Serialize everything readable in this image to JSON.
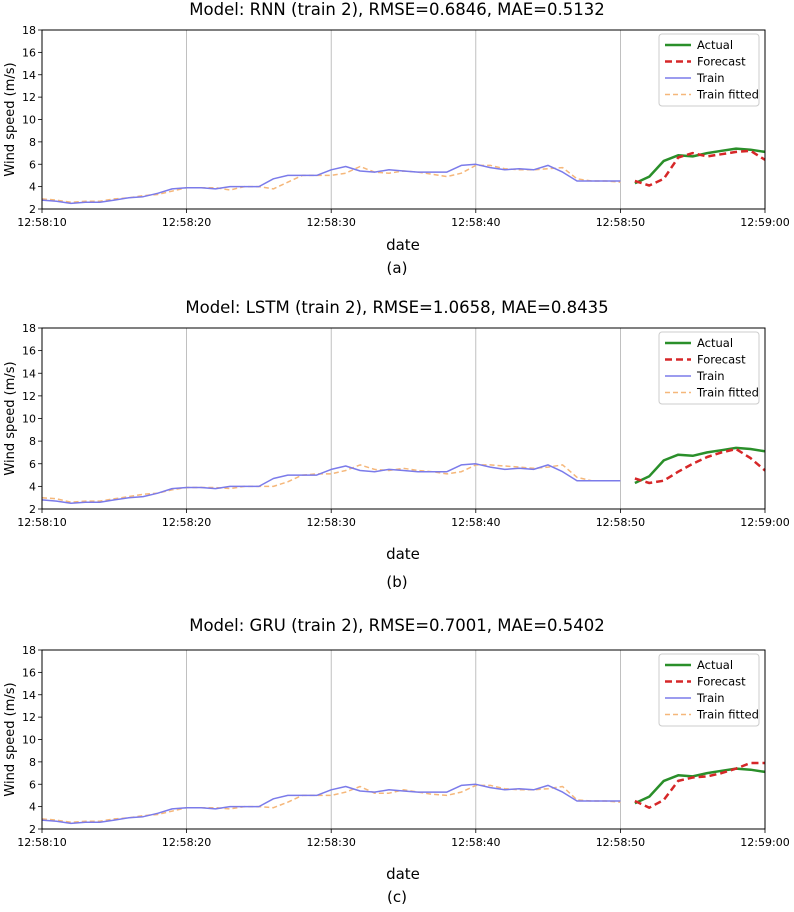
{
  "charts": [
    {
      "title": "Model: RNN (train 2), RMSE=0.6846, MAE=0.5132",
      "sublabel": "(a)"
    },
    {
      "title": "Model: LSTM (train 2), RMSE=1.0658, MAE=0.8435",
      "sublabel": "(b)"
    },
    {
      "title": "Model: GRU (train 2), RMSE=0.7001, MAE=0.5402",
      "sublabel": "(c)"
    }
  ],
  "chart_data": [
    {
      "type": "line",
      "title": "Model: RNN (train 2), RMSE=0.6846, MAE=0.5132",
      "xlabel": "date",
      "ylabel": "Wind speed (m/s)",
      "ylim": [
        2,
        18
      ],
      "yticks": [
        2,
        4,
        6,
        8,
        10,
        12,
        14,
        16,
        18
      ],
      "xlim": [
        "12:58:10",
        "12:59:00"
      ],
      "xticks": [
        "12:58:10",
        "12:58:20",
        "12:58:30",
        "12:58:40",
        "12:58:50",
        "12:59:00"
      ],
      "grid": true,
      "legend": "top-right",
      "series": [
        {
          "name": "Actual",
          "color": "#2a8f2a",
          "style": "solid",
          "x": [
            "12:58:51",
            "12:58:52",
            "12:58:53",
            "12:58:54",
            "12:58:55",
            "12:58:56",
            "12:58:57",
            "12:58:58",
            "12:58:59",
            "12:59:00"
          ],
          "y": [
            4.3,
            4.9,
            6.3,
            6.8,
            6.7,
            7.0,
            7.2,
            7.4,
            7.3,
            7.1
          ]
        },
        {
          "name": "Forecast",
          "color": "#d62728",
          "style": "dashed",
          "x": [
            "12:58:51",
            "12:58:52",
            "12:58:53",
            "12:58:54",
            "12:58:55",
            "12:58:56",
            "12:58:57",
            "12:58:58",
            "12:58:59",
            "12:59:00"
          ],
          "y": [
            4.5,
            4.1,
            4.7,
            6.6,
            7.0,
            6.7,
            6.9,
            7.1,
            7.2,
            6.4
          ]
        },
        {
          "name": "Train",
          "color": "#7b7bea",
          "style": "solid",
          "x": [
            "12:58:10",
            "12:58:11",
            "12:58:12",
            "12:58:13",
            "12:58:14",
            "12:58:15",
            "12:58:16",
            "12:58:17",
            "12:58:18",
            "12:58:19",
            "12:58:20",
            "12:58:21",
            "12:58:22",
            "12:58:23",
            "12:58:24",
            "12:58:25",
            "12:58:26",
            "12:58:27",
            "12:58:28",
            "12:58:29",
            "12:58:30",
            "12:58:31",
            "12:58:32",
            "12:58:33",
            "12:58:34",
            "12:58:35",
            "12:58:36",
            "12:58:37",
            "12:58:38",
            "12:58:39",
            "12:58:40",
            "12:58:41",
            "12:58:42",
            "12:58:43",
            "12:58:44",
            "12:58:45",
            "12:58:46",
            "12:58:47",
            "12:58:48",
            "12:58:49",
            "12:58:50"
          ],
          "y": [
            2.8,
            2.7,
            2.5,
            2.6,
            2.6,
            2.8,
            3.0,
            3.1,
            3.4,
            3.8,
            3.9,
            3.9,
            3.8,
            4.0,
            4.0,
            4.0,
            4.7,
            5.0,
            5.0,
            5.0,
            5.5,
            5.8,
            5.4,
            5.3,
            5.5,
            5.4,
            5.3,
            5.3,
            5.3,
            5.9,
            6.0,
            5.7,
            5.5,
            5.6,
            5.5,
            5.9,
            5.3,
            4.5,
            4.5,
            4.5,
            4.5
          ]
        },
        {
          "name": "Train fitted",
          "color": "#f5b77a",
          "style": "dashed",
          "x": [
            "12:58:10",
            "12:58:11",
            "12:58:12",
            "12:58:13",
            "12:58:14",
            "12:58:15",
            "12:58:16",
            "12:58:17",
            "12:58:18",
            "12:58:19",
            "12:58:20",
            "12:58:21",
            "12:58:22",
            "12:58:23",
            "12:58:24",
            "12:58:25",
            "12:58:26",
            "12:58:27",
            "12:58:28",
            "12:58:29",
            "12:58:30",
            "12:58:31",
            "12:58:32",
            "12:58:33",
            "12:58:34",
            "12:58:35",
            "12:58:36",
            "12:58:37",
            "12:58:38",
            "12:58:39",
            "12:58:40",
            "12:58:41",
            "12:58:42",
            "12:58:43",
            "12:58:44",
            "12:58:45",
            "12:58:46",
            "12:58:47",
            "12:58:48",
            "12:58:49",
            "12:58:50"
          ],
          "y": [
            2.9,
            2.8,
            2.6,
            2.7,
            2.7,
            2.9,
            3.0,
            3.2,
            3.3,
            3.6,
            3.9,
            3.9,
            3.9,
            3.7,
            4.0,
            4.0,
            3.8,
            4.4,
            5.0,
            5.0,
            5.0,
            5.2,
            5.8,
            5.3,
            5.2,
            5.4,
            5.3,
            5.1,
            4.9,
            5.2,
            5.9,
            5.9,
            5.6,
            5.5,
            5.5,
            5.6,
            5.7,
            4.7,
            4.5,
            4.5,
            4.4
          ]
        }
      ]
    },
    {
      "type": "line",
      "title": "Model: LSTM (train 2), RMSE=1.0658, MAE=0.8435",
      "xlabel": "date",
      "ylabel": "Wind speed (m/s)",
      "ylim": [
        2,
        18
      ],
      "yticks": [
        2,
        4,
        6,
        8,
        10,
        12,
        14,
        16,
        18
      ],
      "xlim": [
        "12:58:10",
        "12:59:00"
      ],
      "xticks": [
        "12:58:10",
        "12:58:20",
        "12:58:30",
        "12:58:40",
        "12:58:50",
        "12:59:00"
      ],
      "grid": true,
      "legend": "top-right",
      "series": [
        {
          "name": "Actual",
          "color": "#2a8f2a",
          "style": "solid",
          "x": [
            "12:58:51",
            "12:58:52",
            "12:58:53",
            "12:58:54",
            "12:58:55",
            "12:58:56",
            "12:58:57",
            "12:58:58",
            "12:58:59",
            "12:59:00"
          ],
          "y": [
            4.3,
            4.9,
            6.3,
            6.8,
            6.7,
            7.0,
            7.2,
            7.4,
            7.3,
            7.1
          ]
        },
        {
          "name": "Forecast",
          "color": "#d62728",
          "style": "dashed",
          "x": [
            "12:58:51",
            "12:58:52",
            "12:58:53",
            "12:58:54",
            "12:58:55",
            "12:58:56",
            "12:58:57",
            "12:58:58",
            "12:58:59",
            "12:59:00"
          ],
          "y": [
            4.7,
            4.3,
            4.5,
            5.3,
            6.0,
            6.6,
            7.0,
            7.3,
            6.5,
            5.4
          ]
        },
        {
          "name": "Train",
          "color": "#7b7bea",
          "style": "solid",
          "x": [
            "12:58:10",
            "12:58:11",
            "12:58:12",
            "12:58:13",
            "12:58:14",
            "12:58:15",
            "12:58:16",
            "12:58:17",
            "12:58:18",
            "12:58:19",
            "12:58:20",
            "12:58:21",
            "12:58:22",
            "12:58:23",
            "12:58:24",
            "12:58:25",
            "12:58:26",
            "12:58:27",
            "12:58:28",
            "12:58:29",
            "12:58:30",
            "12:58:31",
            "12:58:32",
            "12:58:33",
            "12:58:34",
            "12:58:35",
            "12:58:36",
            "12:58:37",
            "12:58:38",
            "12:58:39",
            "12:58:40",
            "12:58:41",
            "12:58:42",
            "12:58:43",
            "12:58:44",
            "12:58:45",
            "12:58:46",
            "12:58:47",
            "12:58:48",
            "12:58:49",
            "12:58:50"
          ],
          "y": [
            2.8,
            2.7,
            2.5,
            2.6,
            2.6,
            2.8,
            3.0,
            3.1,
            3.4,
            3.8,
            3.9,
            3.9,
            3.8,
            4.0,
            4.0,
            4.0,
            4.7,
            5.0,
            5.0,
            5.0,
            5.5,
            5.8,
            5.4,
            5.3,
            5.5,
            5.4,
            5.3,
            5.3,
            5.3,
            5.9,
            6.0,
            5.7,
            5.5,
            5.6,
            5.5,
            5.9,
            5.3,
            4.5,
            4.5,
            4.5,
            4.5
          ]
        },
        {
          "name": "Train fitted",
          "color": "#f5b77a",
          "style": "dashed",
          "x": [
            "12:58:10",
            "12:58:11",
            "12:58:12",
            "12:58:13",
            "12:58:14",
            "12:58:15",
            "12:58:16",
            "12:58:17",
            "12:58:18",
            "12:58:19",
            "12:58:20",
            "12:58:21",
            "12:58:22",
            "12:58:23",
            "12:58:24",
            "12:58:25",
            "12:58:26",
            "12:58:27",
            "12:58:28",
            "12:58:29",
            "12:58:30",
            "12:58:31",
            "12:58:32",
            "12:58:33",
            "12:58:34",
            "12:58:35",
            "12:58:36",
            "12:58:37",
            "12:58:38",
            "12:58:39",
            "12:58:40",
            "12:58:41",
            "12:58:42",
            "12:58:43",
            "12:58:44",
            "12:58:45",
            "12:58:46",
            "12:58:47",
            "12:58:48",
            "12:58:49",
            "12:58:50"
          ],
          "y": [
            3.0,
            2.9,
            2.6,
            2.7,
            2.7,
            2.9,
            3.1,
            3.3,
            3.4,
            3.7,
            3.9,
            3.9,
            3.9,
            3.8,
            4.0,
            4.0,
            4.0,
            4.4,
            5.0,
            5.1,
            5.1,
            5.4,
            5.9,
            5.5,
            5.4,
            5.6,
            5.4,
            5.3,
            5.1,
            5.3,
            5.9,
            5.9,
            5.8,
            5.7,
            5.6,
            5.7,
            5.9,
            4.8,
            4.5,
            4.5,
            4.5
          ]
        }
      ]
    },
    {
      "type": "line",
      "title": "Model: GRU (train 2), RMSE=0.7001, MAE=0.5402",
      "xlabel": "date",
      "ylabel": "Wind speed (m/s)",
      "ylim": [
        2,
        18
      ],
      "yticks": [
        2,
        4,
        6,
        8,
        10,
        12,
        14,
        16,
        18
      ],
      "xlim": [
        "12:58:10",
        "12:59:00"
      ],
      "xticks": [
        "12:58:10",
        "12:58:20",
        "12:58:30",
        "12:58:40",
        "12:58:50",
        "12:59:00"
      ],
      "grid": true,
      "legend": "top-right",
      "series": [
        {
          "name": "Actual",
          "color": "#2a8f2a",
          "style": "solid",
          "x": [
            "12:58:51",
            "12:58:52",
            "12:58:53",
            "12:58:54",
            "12:58:55",
            "12:58:56",
            "12:58:57",
            "12:58:58",
            "12:58:59",
            "12:59:00"
          ],
          "y": [
            4.3,
            4.9,
            6.3,
            6.8,
            6.7,
            7.0,
            7.2,
            7.4,
            7.3,
            7.1
          ]
        },
        {
          "name": "Forecast",
          "color": "#d62728",
          "style": "dashed",
          "x": [
            "12:58:51",
            "12:58:52",
            "12:58:53",
            "12:58:54",
            "12:58:55",
            "12:58:56",
            "12:58:57",
            "12:58:58",
            "12:58:59",
            "12:59:00"
          ],
          "y": [
            4.5,
            3.9,
            4.6,
            6.3,
            6.6,
            6.7,
            7.0,
            7.4,
            7.9,
            7.9
          ]
        },
        {
          "name": "Train",
          "color": "#7b7bea",
          "style": "solid",
          "x": [
            "12:58:10",
            "12:58:11",
            "12:58:12",
            "12:58:13",
            "12:58:14",
            "12:58:15",
            "12:58:16",
            "12:58:17",
            "12:58:18",
            "12:58:19",
            "12:58:20",
            "12:58:21",
            "12:58:22",
            "12:58:23",
            "12:58:24",
            "12:58:25",
            "12:58:26",
            "12:58:27",
            "12:58:28",
            "12:58:29",
            "12:58:30",
            "12:58:31",
            "12:58:32",
            "12:58:33",
            "12:58:34",
            "12:58:35",
            "12:58:36",
            "12:58:37",
            "12:58:38",
            "12:58:39",
            "12:58:40",
            "12:58:41",
            "12:58:42",
            "12:58:43",
            "12:58:44",
            "12:58:45",
            "12:58:46",
            "12:58:47",
            "12:58:48",
            "12:58:49",
            "12:58:50"
          ],
          "y": [
            2.8,
            2.7,
            2.5,
            2.6,
            2.6,
            2.8,
            3.0,
            3.1,
            3.4,
            3.8,
            3.9,
            3.9,
            3.8,
            4.0,
            4.0,
            4.0,
            4.7,
            5.0,
            5.0,
            5.0,
            5.5,
            5.8,
            5.4,
            5.3,
            5.5,
            5.4,
            5.3,
            5.3,
            5.3,
            5.9,
            6.0,
            5.7,
            5.5,
            5.6,
            5.5,
            5.9,
            5.3,
            4.5,
            4.5,
            4.5,
            4.5
          ]
        },
        {
          "name": "Train fitted",
          "color": "#f5b77a",
          "style": "dashed",
          "x": [
            "12:58:10",
            "12:58:11",
            "12:58:12",
            "12:58:13",
            "12:58:14",
            "12:58:15",
            "12:58:16",
            "12:58:17",
            "12:58:18",
            "12:58:19",
            "12:58:20",
            "12:58:21",
            "12:58:22",
            "12:58:23",
            "12:58:24",
            "12:58:25",
            "12:58:26",
            "12:58:27",
            "12:58:28",
            "12:58:29",
            "12:58:30",
            "12:58:31",
            "12:58:32",
            "12:58:33",
            "12:58:34",
            "12:58:35",
            "12:58:36",
            "12:58:37",
            "12:58:38",
            "12:58:39",
            "12:58:40",
            "12:58:41",
            "12:58:42",
            "12:58:43",
            "12:58:44",
            "12:58:45",
            "12:58:46",
            "12:58:47",
            "12:58:48",
            "12:58:49",
            "12:58:50"
          ],
          "y": [
            2.9,
            2.8,
            2.6,
            2.7,
            2.7,
            2.9,
            3.0,
            3.2,
            3.3,
            3.6,
            3.9,
            3.9,
            3.9,
            3.8,
            4.0,
            4.0,
            3.9,
            4.4,
            5.0,
            5.0,
            5.0,
            5.3,
            5.8,
            5.2,
            5.2,
            5.5,
            5.3,
            5.1,
            5.0,
            5.3,
            5.9,
            5.9,
            5.6,
            5.5,
            5.5,
            5.6,
            5.8,
            4.6,
            4.5,
            4.5,
            4.4
          ]
        }
      ]
    }
  ]
}
